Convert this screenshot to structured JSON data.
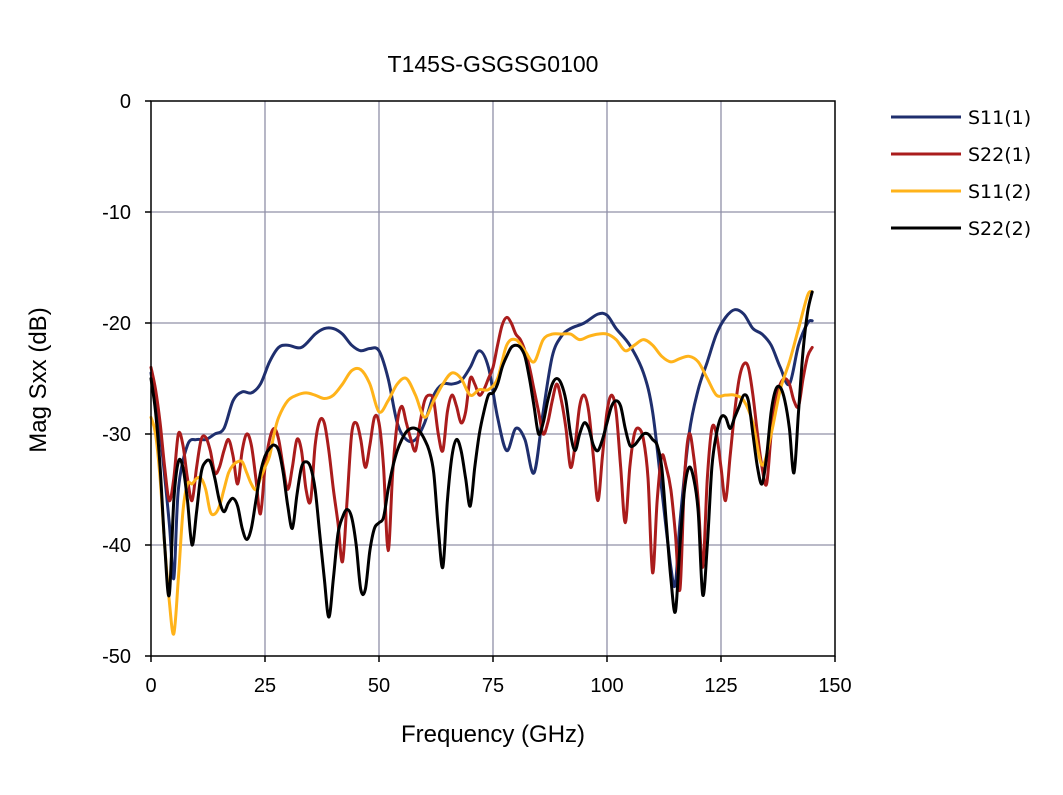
{
  "chart_data": {
    "type": "line",
    "title": "T145S-GSGSG0100",
    "xlabel": "Frequency (GHz)",
    "ylabel": "Mag Sxx (dB)",
    "xlim": [
      0,
      150
    ],
    "ylim": [
      -50,
      0
    ],
    "xticks": [
      "0",
      "25",
      "50",
      "75",
      "100",
      "125",
      "150"
    ],
    "yticks": [
      "0",
      "-10",
      "-20",
      "-30",
      "-40",
      "-50"
    ],
    "xtick_values": [
      0,
      25,
      50,
      75,
      100,
      125,
      150
    ],
    "ytick_values": [
      0,
      -10,
      -20,
      -30,
      -40,
      -50
    ],
    "grid": true,
    "legend_position": "right",
    "series": [
      {
        "name": "S11(1)",
        "color": "#1f2f6e",
        "x": [
          0,
          2,
          4,
          5,
          6,
          8,
          10,
          12,
          14,
          16,
          18,
          20,
          22,
          24,
          26,
          28,
          30,
          33,
          36,
          38,
          40,
          42,
          44,
          46,
          48,
          50,
          52,
          54,
          56,
          58,
          60,
          62,
          64,
          66,
          68,
          70,
          72,
          74,
          76,
          78,
          80,
          82,
          84,
          86,
          88,
          90,
          92,
          95,
          98,
          100,
          102,
          105,
          108,
          110,
          112,
          114,
          115,
          116,
          118,
          120,
          122,
          124,
          126,
          128,
          130,
          132,
          134,
          136,
          138,
          140,
          142,
          144,
          145
        ],
        "values": [
          -24.5,
          -30,
          -38,
          -43,
          -35,
          -31,
          -30.5,
          -30.5,
          -30,
          -29.5,
          -27,
          -26.2,
          -26.3,
          -25.5,
          -23.5,
          -22.2,
          -22,
          -22.2,
          -21,
          -20.5,
          -20.5,
          -21,
          -22,
          -22.5,
          -22.3,
          -22.5,
          -25,
          -29,
          -30.5,
          -30.5,
          -29,
          -26.5,
          -25.5,
          -25.5,
          -25.2,
          -24,
          -22.5,
          -24,
          -28.5,
          -31.5,
          -29.5,
          -30.5,
          -33.5,
          -28,
          -23,
          -21.2,
          -20.5,
          -20,
          -19.2,
          -19.3,
          -20.5,
          -22,
          -24.5,
          -28,
          -35,
          -42,
          -43.5,
          -38,
          -30,
          -26,
          -23.5,
          -21,
          -19.5,
          -18.8,
          -19.2,
          -20.5,
          -21,
          -22,
          -24,
          -25.5,
          -22,
          -20,
          -19.8
        ]
      },
      {
        "name": "S22(1)",
        "color": "#aa1c1c",
        "x": [
          0,
          1,
          2,
          3,
          4,
          5,
          6,
          7,
          8,
          9,
          10,
          11,
          12,
          13,
          14,
          15,
          16,
          17,
          18,
          19,
          20,
          21,
          22,
          23,
          24,
          25,
          26,
          27,
          28,
          29,
          30,
          31,
          32,
          33,
          34,
          35,
          36,
          37,
          38,
          39,
          40,
          41,
          42,
          43,
          44,
          45,
          46,
          47,
          48,
          49,
          50,
          51,
          52,
          53,
          54,
          55,
          56,
          57,
          58,
          59,
          60,
          61,
          62,
          63,
          64,
          65,
          66,
          67,
          68,
          69,
          70,
          71,
          72,
          73,
          74,
          75,
          76,
          77,
          78,
          79,
          80,
          81,
          82,
          83,
          84,
          85,
          86,
          87,
          88,
          89,
          90,
          91,
          92,
          93,
          94,
          95,
          96,
          97,
          98,
          99,
          100,
          101,
          102,
          103,
          104,
          105,
          106,
          107,
          108,
          109,
          110,
          111,
          112,
          113,
          114,
          115,
          116,
          117,
          118,
          119,
          120,
          121,
          122,
          123,
          124,
          125,
          126,
          127,
          128,
          129,
          130,
          131,
          132,
          133,
          134,
          135,
          136,
          137,
          138,
          139,
          140,
          141,
          142,
          143,
          144,
          145
        ],
        "values": [
          -24,
          -26,
          -29,
          -33,
          -36,
          -34,
          -30,
          -31,
          -34,
          -36,
          -33,
          -30.5,
          -30.3,
          -31.5,
          -33.5,
          -33,
          -31.5,
          -30.5,
          -32,
          -34.5,
          -31.5,
          -30,
          -31,
          -34,
          -37.2,
          -33,
          -30.5,
          -29.5,
          -30.5,
          -33,
          -35,
          -33,
          -30.5,
          -31.5,
          -35,
          -36,
          -31,
          -28.8,
          -29,
          -31.5,
          -35,
          -38,
          -41.5,
          -36,
          -30,
          -29,
          -30.5,
          -33,
          -31,
          -28.5,
          -29,
          -33,
          -40.5,
          -33.5,
          -29,
          -27.5,
          -29,
          -30.5,
          -31.5,
          -29,
          -27,
          -26.5,
          -27,
          -30,
          -31.5,
          -28,
          -26.5,
          -27.5,
          -29,
          -28,
          -25,
          -25.5,
          -26.5,
          -26,
          -25,
          -24,
          -22,
          -20.2,
          -19.5,
          -20,
          -21,
          -21.5,
          -22.5,
          -24,
          -26,
          -28,
          -30,
          -29,
          -27,
          -25.5,
          -27,
          -29.5,
          -33,
          -31,
          -27.5,
          -26.5,
          -28,
          -32,
          -36,
          -32,
          -28,
          -26.5,
          -28,
          -33,
          -38,
          -33,
          -30,
          -29.5,
          -30.5,
          -34,
          -42.5,
          -36,
          -32,
          -33,
          -35,
          -39,
          -44,
          -34,
          -30,
          -32,
          -36,
          -42,
          -34,
          -29.5,
          -30,
          -33,
          -36,
          -32,
          -28,
          -25,
          -23.7,
          -24,
          -26.5,
          -30,
          -33,
          -34.5,
          -30,
          -27,
          -25.5,
          -25,
          -25.5,
          -27,
          -27.5,
          -25,
          -23,
          -22.2
        ]
      },
      {
        "name": "S11(2)",
        "color": "#ffb31a",
        "x": [
          0,
          1,
          2,
          3,
          4,
          5,
          6,
          7,
          8,
          9,
          10,
          11,
          12,
          13,
          14,
          15,
          16,
          17,
          18,
          19,
          20,
          21,
          22,
          23,
          24,
          25,
          26,
          27,
          28,
          30,
          32,
          34,
          36,
          38,
          40,
          42,
          44,
          46,
          48,
          50,
          52,
          54,
          56,
          58,
          60,
          62,
          64,
          66,
          68,
          70,
          72,
          74,
          76,
          78,
          80,
          82,
          84,
          86,
          88,
          90,
          92,
          94,
          96,
          98,
          100,
          102,
          104,
          106,
          108,
          110,
          112,
          114,
          116,
          118,
          120,
          122,
          124,
          126,
          128,
          130,
          132,
          134,
          136,
          138,
          140,
          142,
          144,
          145
        ],
        "values": [
          -28.5,
          -30,
          -34,
          -40,
          -45,
          -48,
          -43,
          -37,
          -34.5,
          -34.5,
          -34,
          -34,
          -35,
          -37,
          -37.2,
          -36.5,
          -35,
          -33.5,
          -32.8,
          -32.5,
          -32.5,
          -33.5,
          -34.5,
          -35,
          -34,
          -33,
          -32,
          -30,
          -28.5,
          -27,
          -26.5,
          -26.3,
          -26.5,
          -26.8,
          -26.5,
          -25.5,
          -24.3,
          -24.2,
          -25.5,
          -28,
          -27,
          -25.5,
          -25,
          -26.5,
          -28.5,
          -27,
          -25.5,
          -24.5,
          -25,
          -26.5,
          -26,
          -26,
          -25,
          -22,
          -21.5,
          -22.5,
          -23.5,
          -21.5,
          -21,
          -21,
          -21,
          -21.5,
          -21.2,
          -21,
          -21,
          -21.5,
          -22.5,
          -22,
          -21.5,
          -22,
          -23,
          -23.5,
          -23.2,
          -23,
          -23.5,
          -25,
          -26.5,
          -26.5,
          -26.5,
          -27,
          -29,
          -32.8,
          -30,
          -26,
          -23.5,
          -20.5,
          -17.5,
          -17.2
        ]
      },
      {
        "name": "S22(2)",
        "color": "#000000",
        "x": [
          0,
          1,
          2,
          3,
          4,
          5,
          6,
          7,
          8,
          9,
          10,
          11,
          12,
          13,
          14,
          15,
          16,
          17,
          18,
          19,
          20,
          21,
          22,
          23,
          24,
          25,
          26,
          27,
          28,
          29,
          30,
          31,
          32,
          33,
          34,
          35,
          36,
          37,
          38,
          39,
          40,
          41,
          42,
          43,
          44,
          45,
          46,
          47,
          48,
          49,
          50,
          51,
          52,
          53,
          54,
          55,
          56,
          57,
          58,
          59,
          60,
          61,
          62,
          63,
          64,
          65,
          66,
          67,
          68,
          69,
          70,
          71,
          72,
          73,
          74,
          75,
          76,
          77,
          78,
          79,
          80,
          81,
          82,
          83,
          84,
          85,
          86,
          87,
          88,
          89,
          90,
          91,
          92,
          93,
          94,
          95,
          96,
          97,
          98,
          99,
          100,
          101,
          102,
          103,
          104,
          105,
          106,
          107,
          108,
          109,
          110,
          111,
          112,
          113,
          114,
          115,
          116,
          117,
          118,
          119,
          120,
          121,
          122,
          123,
          124,
          125,
          126,
          127,
          128,
          129,
          130,
          131,
          132,
          133,
          134,
          135,
          136,
          137,
          138,
          139,
          140,
          141,
          142,
          143,
          144,
          145
        ],
        "values": [
          -25,
          -28,
          -33,
          -40,
          -44.5,
          -36,
          -32.5,
          -33,
          -36,
          -40,
          -37,
          -33.5,
          -32.5,
          -32.5,
          -34,
          -36,
          -37,
          -36.2,
          -35.8,
          -36.5,
          -38.5,
          -39.5,
          -38.5,
          -36,
          -33.5,
          -32,
          -31.3,
          -31,
          -31.5,
          -33.5,
          -36.5,
          -38.5,
          -35.5,
          -33,
          -32.5,
          -33,
          -35,
          -39,
          -43,
          -46.5,
          -43,
          -39,
          -37.5,
          -36.8,
          -37.5,
          -40,
          -44,
          -44,
          -40.5,
          -38.5,
          -38,
          -37.5,
          -35,
          -33,
          -31.5,
          -30.5,
          -29.8,
          -29.5,
          -29.5,
          -29.8,
          -30.5,
          -31.5,
          -33.5,
          -38.5,
          -42,
          -36,
          -32,
          -30.5,
          -31.5,
          -34,
          -36.5,
          -33,
          -30,
          -28,
          -26.5,
          -26.3,
          -25.5,
          -24,
          -23,
          -22.2,
          -22,
          -22.2,
          -23,
          -25,
          -27.5,
          -30,
          -29,
          -27,
          -25.5,
          -25,
          -25.5,
          -27,
          -30,
          -31.5,
          -30,
          -29,
          -29.5,
          -31,
          -31.5,
          -30.5,
          -29,
          -27.5,
          -27,
          -27.5,
          -29.5,
          -31,
          -31,
          -30.5,
          -30,
          -30,
          -30.5,
          -31,
          -33,
          -38,
          -43,
          -46,
          -40,
          -35,
          -33,
          -34,
          -37,
          -44.5,
          -40,
          -33,
          -30,
          -28.5,
          -28.5,
          -29.5,
          -28.5,
          -27.5,
          -26.5,
          -27,
          -30,
          -33,
          -34.5,
          -32,
          -28,
          -26,
          -25.8,
          -27,
          -29.5,
          -33.5,
          -28,
          -22.5,
          -19,
          -17.2
        ]
      }
    ]
  }
}
